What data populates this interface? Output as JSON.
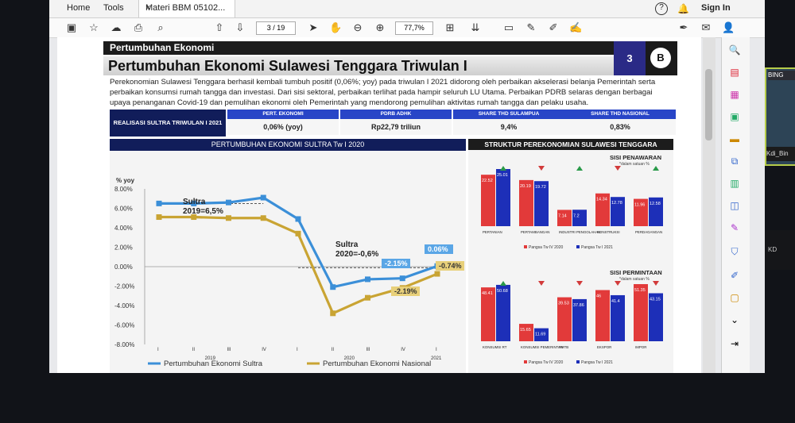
{
  "app": {
    "menu": [
      "Home",
      "Tools"
    ],
    "doc_tab": "Materi BBM 05102...",
    "doc_tab_close": "×",
    "help": "?",
    "sign_in": "Sign In",
    "page_current": "3",
    "page_total": "/ 19",
    "zoom": "77,7%"
  },
  "slide": {
    "section": "Pertumbuhan Ekonomi",
    "title": "Pertumbuhan Ekonomi Sulawesi Tenggara Triwulan I",
    "page_number": "3",
    "logo_text": "B",
    "intro": "Perekonomian Sulawesi Tenggara berhasil kembali tumbuh positif (0,06%; yoy) pada triwulan I 2021 didorong oleh perbaikan akselerasi belanja Pemerintah serta perbaikan konsumsi rumah tangga dan investasi. Dari sisi sektoral, perbaikan terlihat pada hampir seluruh LU Utama. Perbaikan PDRB selaras dengan berbagai upaya penanganan Covid-19 dan pemulihan ekonomi oleh Pemerintah yang mendorong pemulihan aktivitas rumah tangga dan pelaku usaha.",
    "stats_label": "REALISASI SULTRA TRIWULAN I 2021",
    "stats": [
      {
        "head": "PERT. EKONOMI",
        "value": "0,06% (yoy)"
      },
      {
        "head": "PDRB ADHK",
        "value": "Rp22,79 triliun"
      },
      {
        "head": "SHARE THD SULAMPUA",
        "value": "9,4%"
      },
      {
        "head": "SHARE THD NASIONAL",
        "value": "0,83%"
      }
    ]
  },
  "left_chart_title": "PERTUMBUHAN EKONOMI SULTRA Tw I 2020",
  "right_panel_title": "STRUKTUR PEREKONOMIAN SULAWESI TENGGARA",
  "chart_data": [
    {
      "type": "line",
      "title": "PERTUMBUHAN EKONOMI SULTRA Tw I 2020",
      "ylabel": "% yoy",
      "ylim": [
        -8,
        8
      ],
      "yticks": [
        "8.00%",
        "6.00%",
        "4.00%",
        "2.00%",
        "0.00%",
        "-2.00%",
        "-4.00%",
        "-6.00%",
        "-8.00%"
      ],
      "categories": [
        "I",
        "II",
        "III",
        "IV",
        "I",
        "II",
        "III",
        "IV",
        "I"
      ],
      "years": [
        "2019",
        "2020",
        "2021"
      ],
      "series": [
        {
          "name": "Pertumbuhan Ekonomi Sultra",
          "color": "#3b8fd8",
          "values": [
            6.5,
            6.5,
            6.6,
            7.1,
            4.9,
            -2.1,
            -1.3,
            -1.2,
            0.06
          ]
        },
        {
          "name": "Pertumbuhan Ekonomi Nasional",
          "color": "#c9a433",
          "values": [
            5.1,
            5.1,
            5.0,
            5.0,
            3.4,
            -4.8,
            -3.2,
            -2.19,
            -0.74
          ]
        }
      ],
      "annotations": [
        {
          "line1": "Sultra",
          "line2": "2019=6,5%"
        },
        {
          "line1": "Sultra",
          "line2": "2020=-0,6%"
        }
      ],
      "data_labels": [
        "0.06%",
        "-0.74%",
        "-2.15%",
        "-2.19%"
      ]
    },
    {
      "type": "bar",
      "title": "SISI PENAWARAN",
      "unit_note": "*dalam satuan %",
      "categories": [
        "PERTANIAN",
        "PERTAMBANGAN",
        "INDUSTRI PENGOLAHAN",
        "KONSTRUKSI",
        "PERDAGANGAN"
      ],
      "series": [
        {
          "name": "Pangsa Tw IV 2020",
          "color": "#e23a3a",
          "values": [
            22.52,
            20.19,
            7.14,
            14.34,
            11.96
          ]
        },
        {
          "name": "Pangsa Tw I 2021",
          "color": "#1d2fb8",
          "values": [
            25.01,
            19.72,
            7.2,
            12.78,
            12.58
          ]
        }
      ],
      "trend": [
        "up",
        "down",
        "up",
        "down",
        "up"
      ]
    },
    {
      "type": "bar",
      "title": "SISI PERMINTAAN",
      "unit_note": "*dalam satuan %",
      "categories": [
        "KONSUMSI RT",
        "KONSUMSI PEMERINTAH",
        "PMTB",
        "EKSPOR",
        "IMPOR"
      ],
      "series": [
        {
          "name": "Pangsa Tw IV 2020",
          "color": "#e23a3a",
          "values": [
            48.41,
            15.65,
            39.53,
            46.0,
            51.35
          ]
        },
        {
          "name": "Pangsa Tw I 2021",
          "color": "#1d2fb8",
          "values": [
            50.68,
            11.69,
            37.86,
            41.4,
            43.15
          ]
        }
      ],
      "trend": [
        "up",
        "down",
        "down",
        "down",
        "down"
      ]
    }
  ],
  "webcam": {
    "label": "BING",
    "name": "Kdi_Bin"
  },
  "webcam2": {
    "name": "KD"
  }
}
